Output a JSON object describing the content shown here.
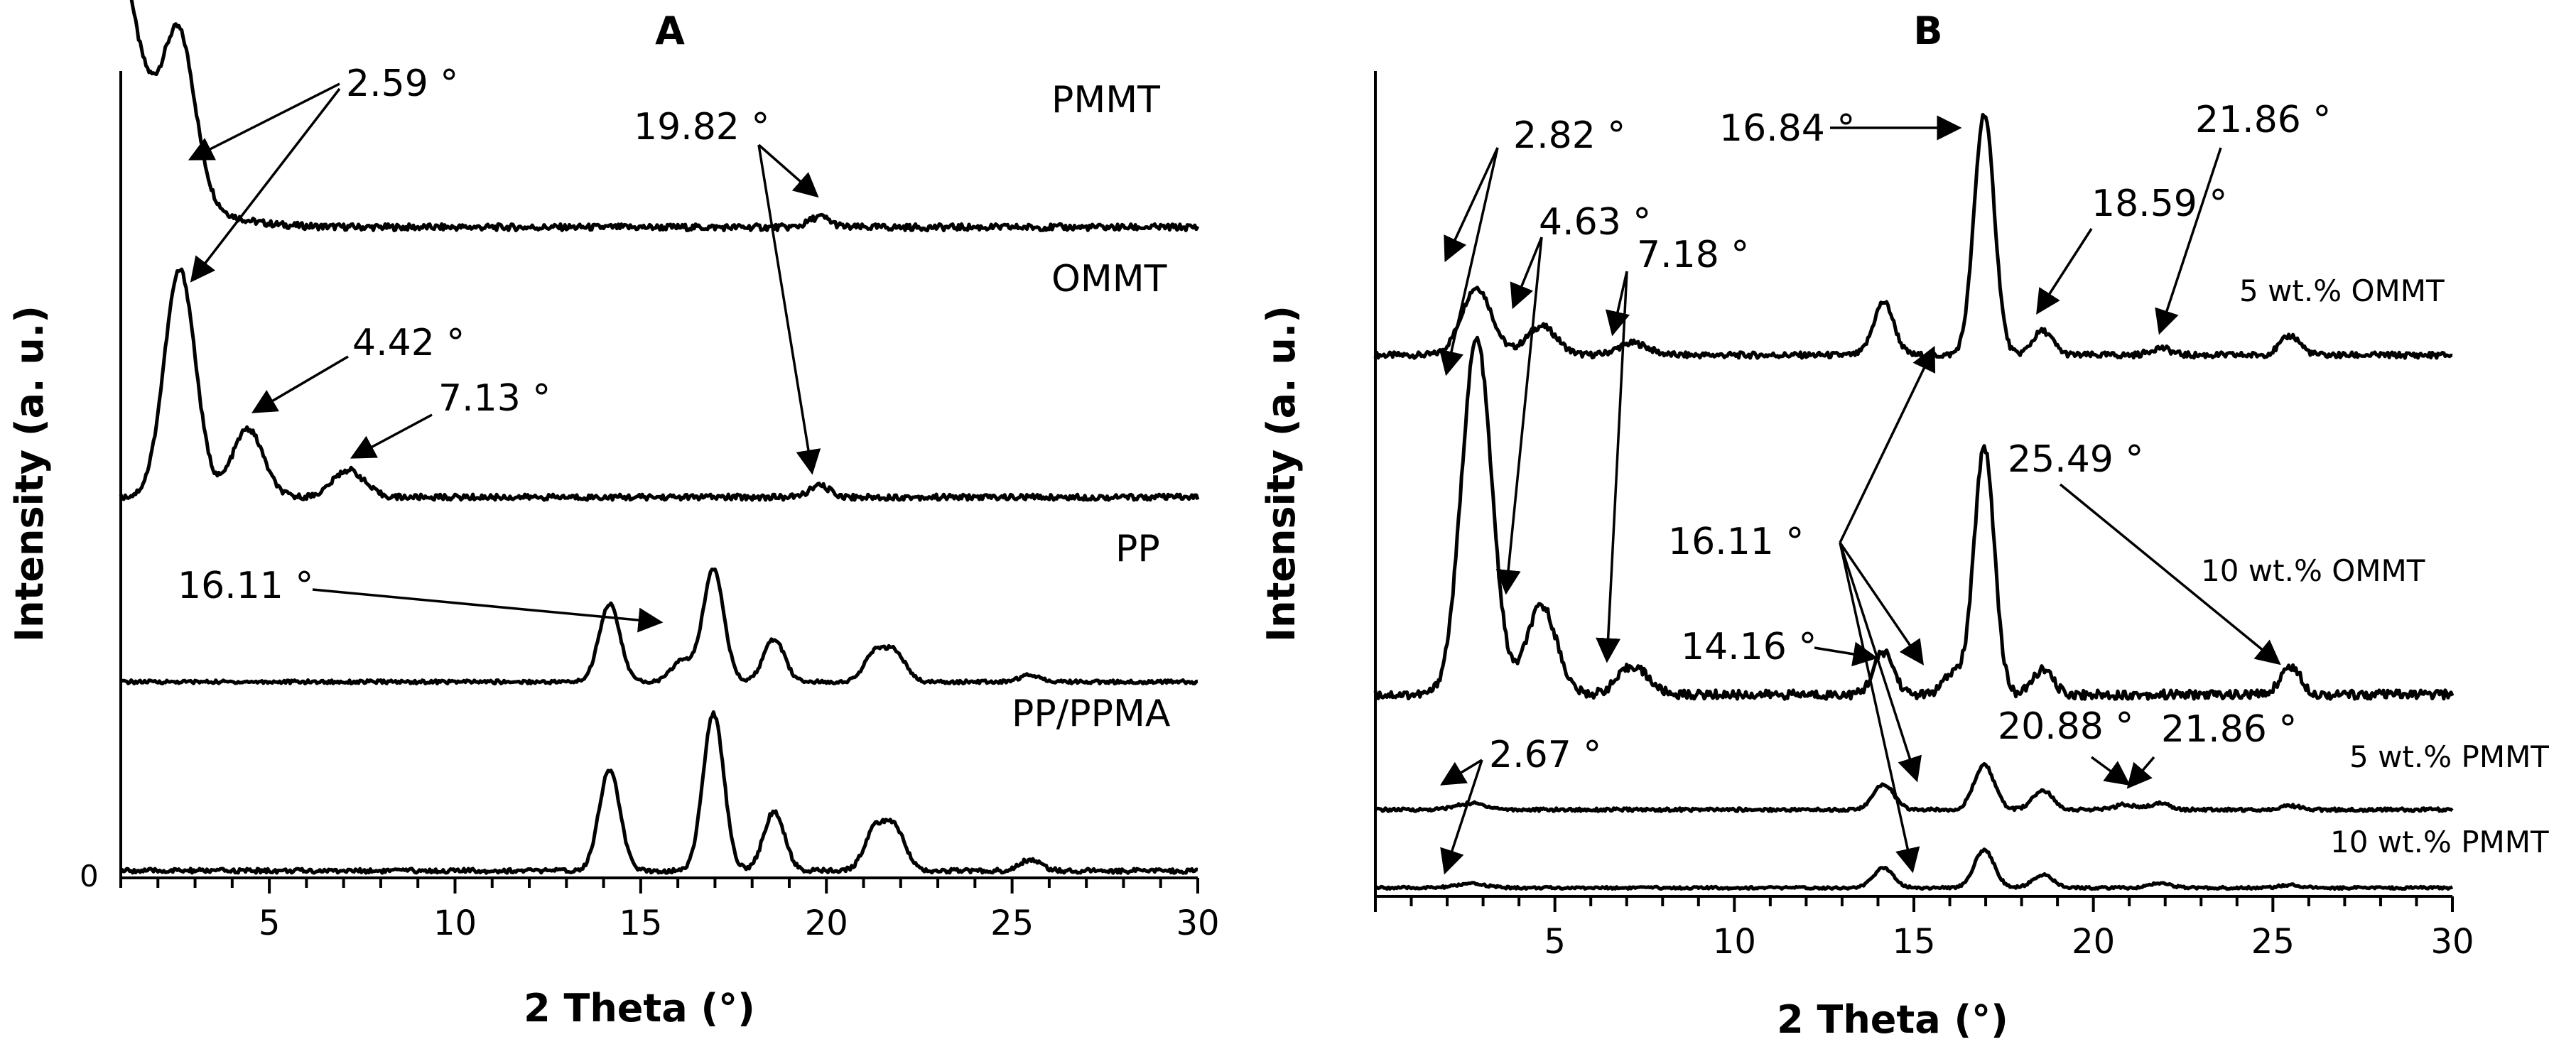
{
  "chart_data": [
    {
      "id": "A",
      "type": "line",
      "title": "A",
      "xlabel": "2 Theta (°)",
      "ylabel": "Intensity (a. u.)",
      "xlim": [
        1,
        30
      ],
      "x_ticks": [
        5,
        10,
        15,
        20,
        25,
        30
      ],
      "y_zero_label": "0",
      "series": [
        {
          "name": "PMMT",
          "peaks": [
            {
              "x": 2.59,
              "h": 0.55
            },
            {
              "x": 19.82,
              "h": 0.04
            }
          ],
          "baseline_tail": {
            "amp": 1.2,
            "decay": 0.9
          }
        },
        {
          "name": "OMMT",
          "peaks": [
            {
              "x": 2.59,
              "h": 1.0
            },
            {
              "x": 4.42,
              "h": 0.3
            },
            {
              "x": 7.13,
              "h": 0.12
            },
            {
              "x": 19.82,
              "h": 0.05
            }
          ],
          "baseline_tail": {
            "amp": 0.0,
            "decay": 1
          }
        },
        {
          "name": "PP",
          "peaks": [
            {
              "x": 14.16,
              "h": 0.55
            },
            {
              "x": 16.11,
              "h": 0.15
            },
            {
              "x": 16.96,
              "h": 0.8
            },
            {
              "x": 18.59,
              "h": 0.3
            },
            {
              "x": 21.3,
              "h": 0.2
            },
            {
              "x": 21.86,
              "h": 0.2
            },
            {
              "x": 25.49,
              "h": 0.05
            }
          ],
          "baseline_tail": {
            "amp": 0.0,
            "decay": 1
          }
        },
        {
          "name": "PP/PPMA",
          "peaks": [
            {
              "x": 14.16,
              "h": 0.55
            },
            {
              "x": 16.96,
              "h": 0.85
            },
            {
              "x": 18.59,
              "h": 0.32
            },
            {
              "x": 21.3,
              "h": 0.22
            },
            {
              "x": 21.86,
              "h": 0.22
            },
            {
              "x": 25.49,
              "h": 0.06
            }
          ],
          "baseline_tail": {
            "amp": 0.0,
            "decay": 1
          }
        }
      ],
      "annotations": [
        {
          "text": "2.59 °",
          "series": "PMMT",
          "x": 2.59
        },
        {
          "text": "19.82 °",
          "series": "PMMT",
          "x": 19.82
        },
        {
          "text": "4.42 °",
          "series": "OMMT",
          "x": 4.42
        },
        {
          "text": "7.13 °",
          "series": "OMMT",
          "x": 7.13
        },
        {
          "text": "16.11 °",
          "series": "PP",
          "x": 16.11
        }
      ]
    },
    {
      "id": "B",
      "type": "line",
      "title": "B",
      "xlabel": "2 Theta (°)",
      "ylabel": "Intensity (a. u.)",
      "xlim": [
        0,
        30
      ],
      "x_ticks": [
        5,
        10,
        15,
        20,
        25,
        30
      ],
      "series": [
        {
          "name": "5 wt.% OMMT",
          "peaks": [
            {
              "x": 2.82,
              "h": 0.28
            },
            {
              "x": 4.63,
              "h": 0.12
            },
            {
              "x": 7.18,
              "h": 0.05
            },
            {
              "x": 14.16,
              "h": 0.22
            },
            {
              "x": 16.96,
              "h": 1.0
            },
            {
              "x": 18.59,
              "h": 0.1
            },
            {
              "x": 21.86,
              "h": 0.03
            },
            {
              "x": 25.49,
              "h": 0.08
            }
          ]
        },
        {
          "name": "10 wt.% OMMT",
          "peaks": [
            {
              "x": 2.82,
              "h": 1.0
            },
            {
              "x": 4.63,
              "h": 0.25
            },
            {
              "x": 7.18,
              "h": 0.08
            },
            {
              "x": 14.16,
              "h": 0.12
            },
            {
              "x": 16.11,
              "h": 0.06
            },
            {
              "x": 16.96,
              "h": 0.7
            },
            {
              "x": 18.59,
              "h": 0.07
            },
            {
              "x": 25.49,
              "h": 0.08
            }
          ]
        },
        {
          "name": "5 wt.% PMMT",
          "peaks": [
            {
              "x": 2.67,
              "h": 0.05
            },
            {
              "x": 14.16,
              "h": 0.2
            },
            {
              "x": 16.96,
              "h": 0.35
            },
            {
              "x": 18.59,
              "h": 0.15
            },
            {
              "x": 20.88,
              "h": 0.04
            },
            {
              "x": 21.86,
              "h": 0.05
            },
            {
              "x": 25.49,
              "h": 0.03
            }
          ]
        },
        {
          "name": "10 wt.% PMMT",
          "peaks": [
            {
              "x": 2.67,
              "h": 0.04
            },
            {
              "x": 14.16,
              "h": 0.2
            },
            {
              "x": 16.96,
              "h": 0.38
            },
            {
              "x": 18.59,
              "h": 0.13
            },
            {
              "x": 21.86,
              "h": 0.05
            },
            {
              "x": 25.49,
              "h": 0.03
            }
          ]
        }
      ],
      "annotations": [
        {
          "text": "2.82 °",
          "x": 2.82
        },
        {
          "text": "4.63 °",
          "x": 4.63
        },
        {
          "text": "7.18 °",
          "x": 7.18
        },
        {
          "text": "16.84 °",
          "x": 16.84
        },
        {
          "text": "18.59 °",
          "x": 18.59
        },
        {
          "text": "21.86 °",
          "x": 21.86
        },
        {
          "text": "25.49 °",
          "x": 25.49
        },
        {
          "text": "16.11 °",
          "x": 16.11
        },
        {
          "text": "14.16 °",
          "x": 14.16
        },
        {
          "text": "2.67 °",
          "x": 2.67
        },
        {
          "text": "20.88 °",
          "x": 20.88
        },
        {
          "text": "21.86 °",
          "x": 21.86
        }
      ]
    }
  ]
}
